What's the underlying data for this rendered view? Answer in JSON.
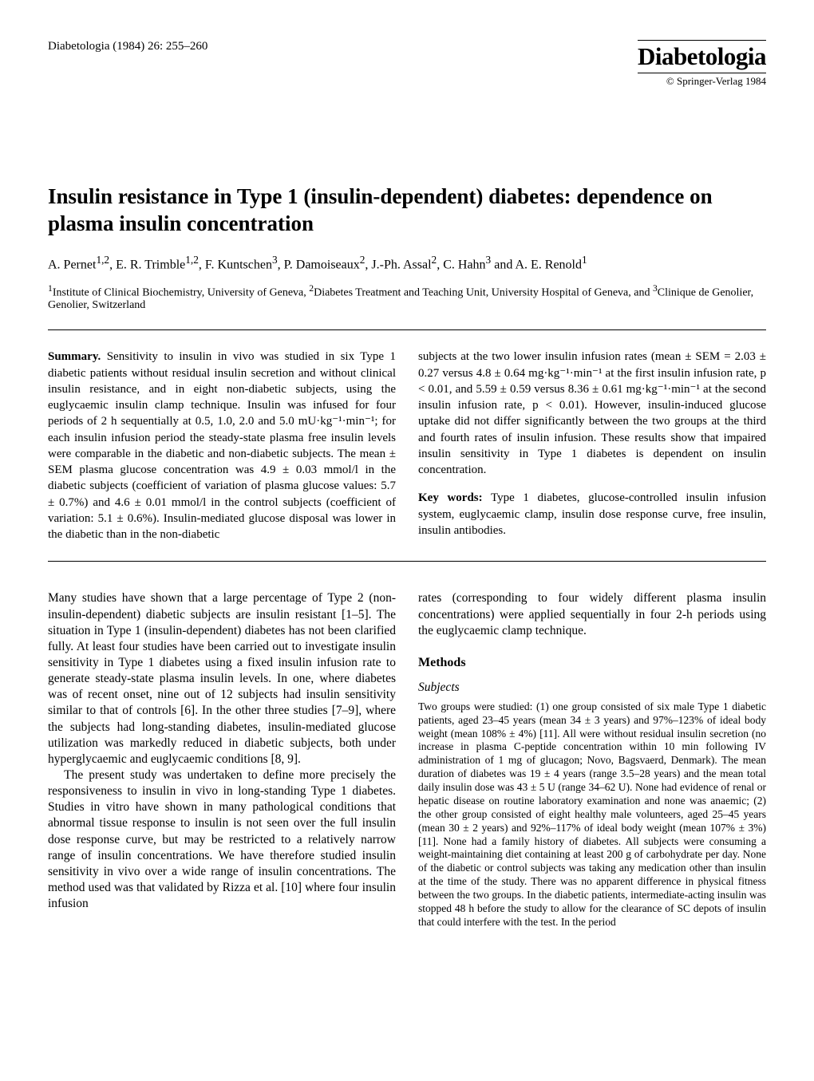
{
  "header": {
    "journal_ref": "Diabetologia (1984) 26: 255–260",
    "journal_logo": "Diabetologia",
    "copyright": "© Springer-Verlag 1984"
  },
  "article": {
    "title": "Insulin resistance in Type 1 (insulin-dependent) diabetes: dependence on plasma insulin concentration",
    "authors_html": "A. Pernet<sup>1,2</sup>, E. R. Trimble<sup>1,2</sup>, F. Kuntschen<sup>3</sup>, P. Damoiseaux<sup>2</sup>, J.-Ph. Assal<sup>2</sup>, C. Hahn<sup>3</sup> and A. E. Renold<sup>1</sup>",
    "affiliations_html": "<sup>1</sup>Institute of Clinical Biochemistry, University of Geneva, <sup>2</sup>Diabetes Treatment and Teaching Unit, University Hospital of Geneva, and <sup>3</sup>Clinique de Genolier, Genolier, Switzerland"
  },
  "abstract": {
    "summary_label": "Summary.",
    "left_text": " Sensitivity to insulin in vivo was studied in six Type 1 diabetic patients without residual insulin secretion and without clinical insulin resistance, and in eight non-diabetic subjects, using the euglycaemic insulin clamp technique. Insulin was infused for four periods of 2 h sequentially at 0.5, 1.0, 2.0 and 5.0 mU·kg⁻¹·min⁻¹; for each insulin infusion period the steady-state plasma free insulin levels were comparable in the diabetic and non-diabetic subjects. The mean ± SEM plasma glucose concentration was 4.9 ± 0.03 mmol/l in the diabetic subjects (coefficient of variation of plasma glucose values: 5.7 ± 0.7%) and 4.6 ± 0.01 mmol/l in the control subjects (coefficient of variation: 5.1 ± 0.6%). Insulin-mediated glucose disposal was lower in the diabetic than in the non-diabetic",
    "right_text_1": "subjects at the two lower insulin infusion rates (mean ± SEM = 2.03 ± 0.27 versus 4.8 ± 0.64 mg·kg⁻¹·min⁻¹ at the first insulin infusion rate, p < 0.01, and 5.59 ± 0.59 versus 8.36 ± 0.61 mg·kg⁻¹·min⁻¹ at the second insulin infusion rate, p < 0.01). However, insulin-induced glucose uptake did not differ significantly between the two groups at the third and fourth rates of insulin infusion. These results show that impaired insulin sensitivity in Type 1 diabetes is dependent on insulin concentration.",
    "keywords_label": "Key words:",
    "keywords_text": " Type 1 diabetes, glucose-controlled insulin infusion system, euglycaemic clamp, insulin dose response curve, free insulin, insulin antibodies."
  },
  "body": {
    "left_p1": "Many studies have shown that a large percentage of Type 2 (non-insulin-dependent) diabetic subjects are insulin resistant [1–5]. The situation in Type 1 (insulin-dependent) diabetes has not been clarified fully. At least four studies have been carried out to investigate insulin sensitivity in Type 1 diabetes using a fixed insulin infusion rate to generate steady-state plasma insulin levels. In one, where diabetes was of recent onset, nine out of 12 subjects had insulin sensitivity similar to that of controls [6]. In the other three studies [7–9], where the subjects had long-standing diabetes, insulin-mediated glucose utilization was markedly reduced in diabetic subjects, both under hyperglycaemic and euglycaemic conditions [8, 9].",
    "left_p2": "The present study was undertaken to define more precisely the responsiveness to insulin in vivo in long-standing Type 1 diabetes. Studies in vitro have shown in many pathological conditions that abnormal tissue response to insulin is not seen over the full insulin dose response curve, but may be restricted to a relatively narrow range of insulin concentrations. We have therefore studied insulin sensitivity in vivo over a wide range of insulin concentrations. The method used was that validated by Rizza et al. [10] where four insulin infusion",
    "right_p1": "rates (corresponding to four widely different plasma insulin concentrations) were applied sequentially in four 2-h periods using the euglycaemic clamp technique.",
    "methods_heading": "Methods",
    "subjects_heading": "Subjects",
    "subjects_text": "Two groups were studied: (1) one group consisted of six male Type 1 diabetic patients, aged 23–45 years (mean 34 ± 3 years) and 97%–123% of ideal body weight (mean 108% ± 4%) [11]. All were without residual insulin secretion (no increase in plasma C-peptide concentration within 10 min following IV administration of 1 mg of glucagon; Novo, Bagsvaerd, Denmark). The mean duration of diabetes was 19 ± 4 years (range 3.5–28 years) and the mean total daily insulin dose was 43 ± 5 U (range 34–62 U). None had evidence of renal or hepatic disease on routine laboratory examination and none was anaemic; (2) the other group consisted of eight healthy male volunteers, aged 25–45 years (mean 30 ± 2 years) and 92%–117% of ideal body weight (mean 107% ± 3%) [11]. None had a family history of diabetes. All subjects were consuming a weight-maintaining diet containing at least 200 g of carbohydrate per day. None of the diabetic or control subjects was taking any medication other than insulin at the time of the study. There was no apparent difference in physical fitness between the two groups. In the diabetic patients, intermediate-acting insulin was stopped 48 h before the study to allow for the clearance of SC depots of insulin that could interfere with the test. In the period"
  }
}
